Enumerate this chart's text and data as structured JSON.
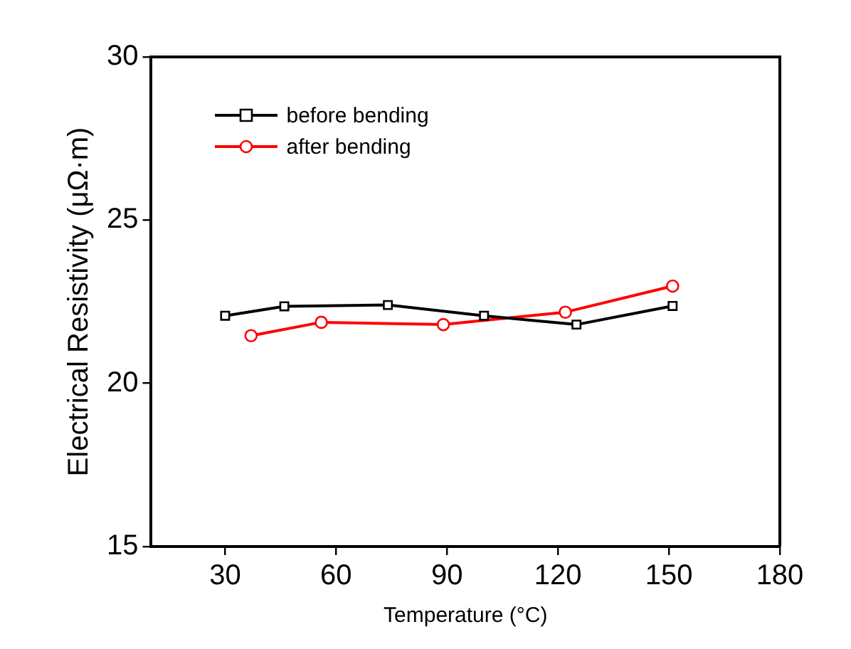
{
  "chart_data": {
    "type": "line",
    "xlabel": "Temperature (°C)",
    "ylabel": "Electrical Resistivity (μΩ·m)",
    "xlim": [
      10,
      180
    ],
    "xticks": [
      30,
      60,
      90,
      120,
      150,
      180
    ],
    "ylim": [
      15,
      30
    ],
    "yticks": [
      15,
      20,
      25,
      30
    ],
    "grid": false,
    "legend": "top left",
    "line_style": "solid",
    "series": [
      {
        "name": "before bending",
        "color": "#000000",
        "marker": "square",
        "x": [
          30,
          46,
          74,
          100,
          125,
          151
        ],
        "values": [
          22.07,
          22.36,
          22.4,
          22.07,
          21.8,
          22.37
        ]
      },
      {
        "name": "after bending",
        "color": "#ff0000",
        "marker": "circle",
        "x": [
          37,
          56,
          89,
          122,
          151
        ],
        "values": [
          21.46,
          21.87,
          21.8,
          22.18,
          22.98
        ]
      }
    ]
  }
}
